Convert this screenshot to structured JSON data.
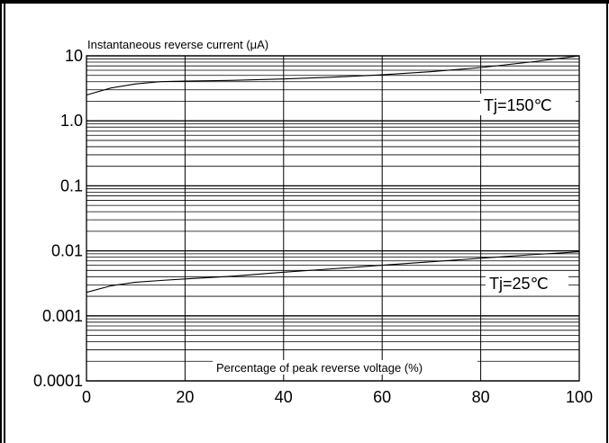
{
  "chart_data": {
    "type": "line",
    "title": "",
    "ylabel": "Instantaneous reverse current (μA)",
    "xlabel": "Percentage of peak reverse voltage (%)",
    "yscale": "log",
    "xlim": [
      0,
      100
    ],
    "ylim": [
      0.0001,
      10
    ],
    "grid": true,
    "x_ticks": [
      0,
      20,
      40,
      60,
      80,
      100
    ],
    "x_tick_labels": [
      "0",
      "20",
      "40",
      "60",
      "80",
      "100"
    ],
    "y_ticks": [
      0.0001,
      0.001,
      0.01,
      0.1,
      1,
      10
    ],
    "y_tick_labels": [
      "0.0001",
      "0.001",
      "0.01",
      "0.1",
      "1.0",
      "10"
    ],
    "series": [
      {
        "name": "Tj=150℃",
        "x": [
          0,
          5,
          10,
          15,
          20,
          30,
          40,
          50,
          60,
          70,
          80,
          90,
          100
        ],
        "y": [
          2.5,
          3.2,
          3.7,
          4.0,
          4.1,
          4.2,
          4.4,
          4.7,
          5.1,
          5.7,
          6.6,
          8.0,
          10.0
        ]
      },
      {
        "name": "Tj=25℃",
        "x": [
          0,
          5,
          10,
          15,
          20,
          30,
          40,
          50,
          60,
          70,
          80,
          90,
          100
        ],
        "y": [
          0.0023,
          0.0029,
          0.0033,
          0.0035,
          0.0037,
          0.0041,
          0.0047,
          0.0053,
          0.006,
          0.0068,
          0.0077,
          0.0087,
          0.0097
        ]
      }
    ]
  }
}
